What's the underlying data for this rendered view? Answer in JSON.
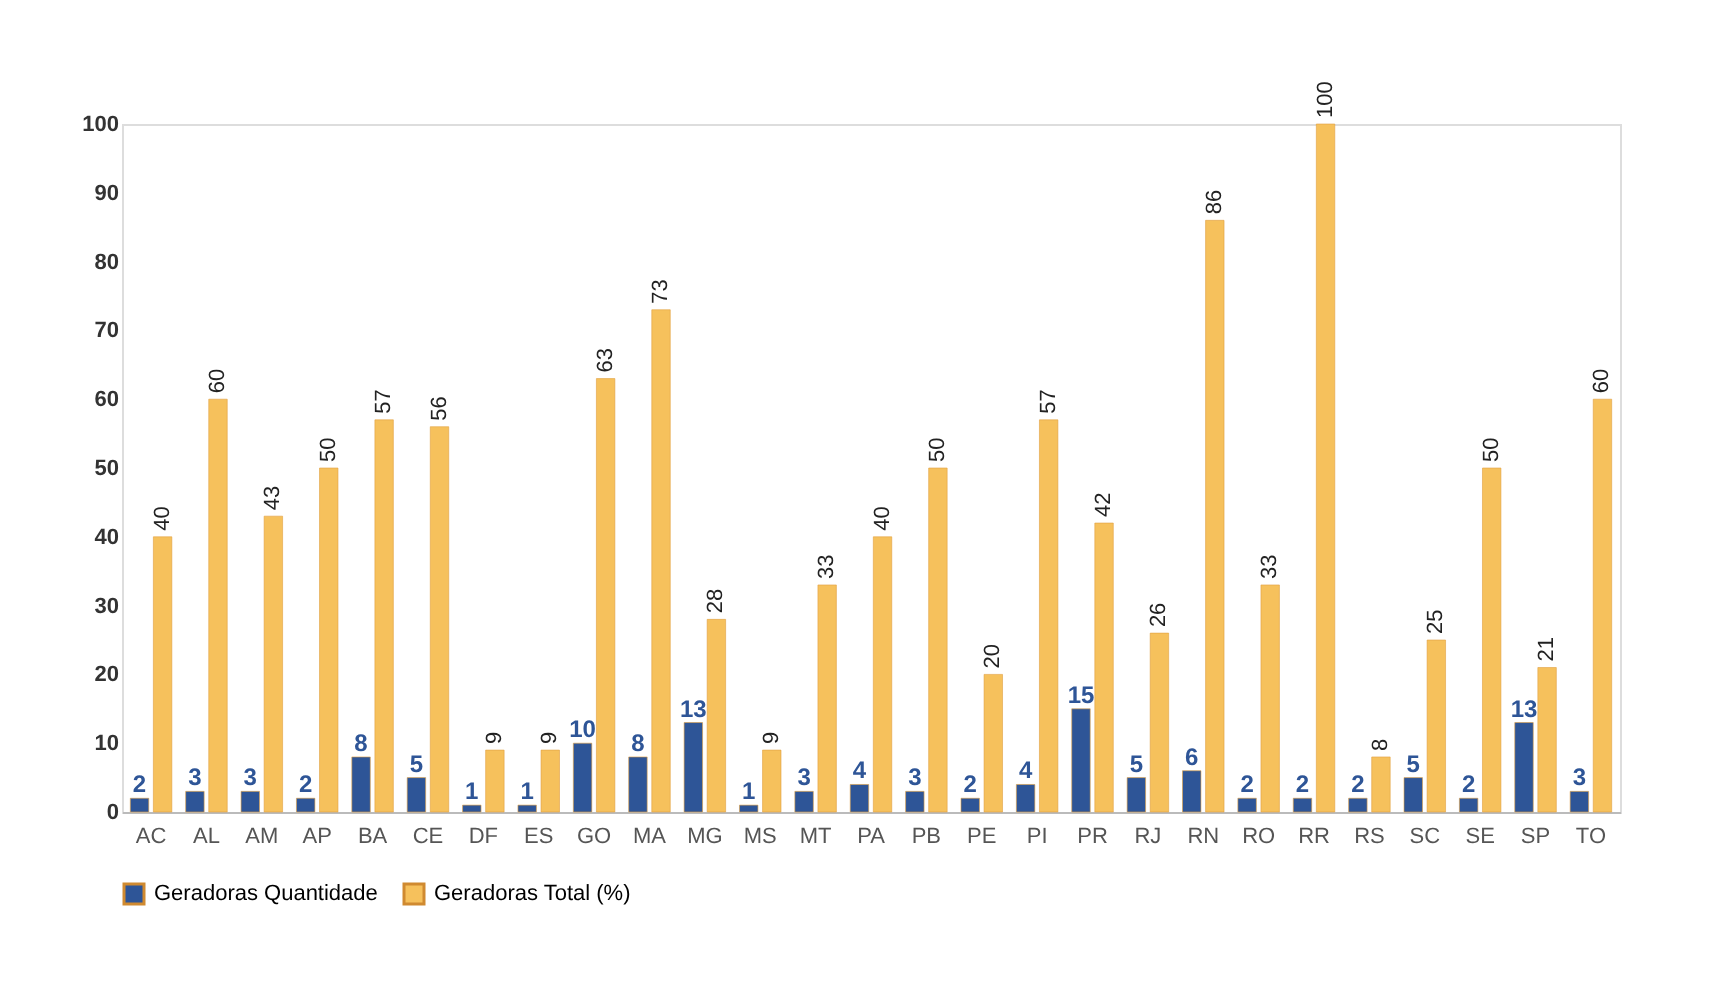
{
  "chart_data": {
    "type": "bar",
    "categories": [
      "AC",
      "AL",
      "AM",
      "AP",
      "BA",
      "CE",
      "DF",
      "ES",
      "GO",
      "MA",
      "MG",
      "MS",
      "MT",
      "PA",
      "PB",
      "PE",
      "PI",
      "PR",
      "RJ",
      "RN",
      "RO",
      "RR",
      "RS",
      "SC",
      "SE",
      "SP",
      "TO"
    ],
    "series": [
      {
        "name": "Geradoras Quantidade",
        "color": "#2e5597",
        "values": [
          2,
          3,
          3,
          2,
          8,
          5,
          1,
          1,
          10,
          8,
          13,
          1,
          3,
          4,
          3,
          2,
          4,
          15,
          5,
          6,
          2,
          2,
          2,
          5,
          2,
          13,
          3
        ]
      },
      {
        "name": "Geradoras Total (%)",
        "color": "#f6c15c",
        "values": [
          40,
          60,
          43,
          50,
          57,
          56,
          9,
          9,
          63,
          73,
          28,
          9,
          33,
          40,
          50,
          20,
          57,
          42,
          26,
          86,
          33,
          100,
          8,
          25,
          50,
          21,
          60
        ]
      }
    ],
    "ylim": [
      0,
      100
    ],
    "yticks": [
      0,
      10,
      20,
      30,
      40,
      50,
      60,
      70,
      80,
      90,
      100
    ],
    "grid": false,
    "legend": "bottom",
    "data_labels": true
  }
}
